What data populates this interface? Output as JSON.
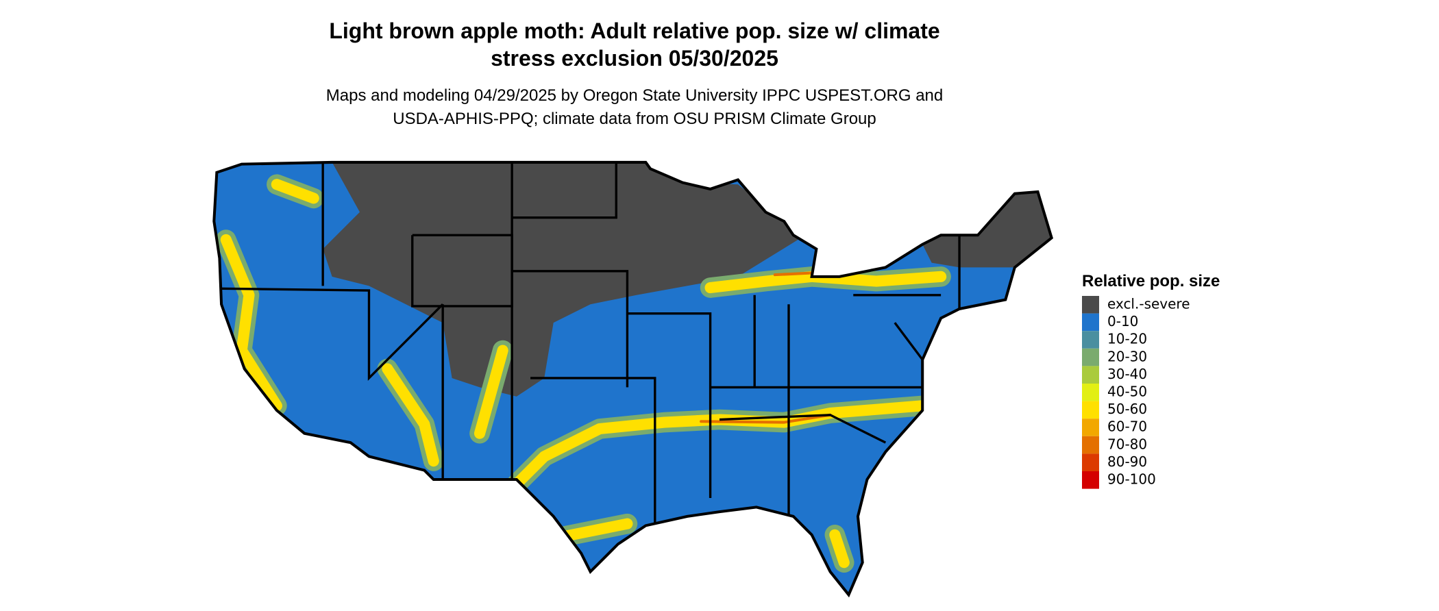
{
  "title": [
    "Light brown apple moth: Adult relative pop. size w/ climate",
    "stress exclusion 05/30/2025"
  ],
  "subtitle": [
    "Maps and modeling 04/29/2025 by Oregon State University IPPC USPEST.ORG and",
    "USDA-APHIS-PPQ; climate data from OSU PRISM Climate Group"
  ],
  "legend": {
    "title": "Relative pop. size",
    "items": [
      {
        "label": "excl.-severe",
        "color": "#4a4a4a"
      },
      {
        "label": "0-10",
        "color": "#1f74cc"
      },
      {
        "label": "10-20",
        "color": "#4a8fa0"
      },
      {
        "label": "20-30",
        "color": "#7aab6e"
      },
      {
        "label": "30-40",
        "color": "#aacb3c"
      },
      {
        "label": "40-50",
        "color": "#e2ef14"
      },
      {
        "label": "50-60",
        "color": "#ffe000"
      },
      {
        "label": "60-70",
        "color": "#f2a800"
      },
      {
        "label": "70-80",
        "color": "#e47000"
      },
      {
        "label": "80-90",
        "color": "#dc3a00"
      },
      {
        "label": "90-100",
        "color": "#d40000"
      }
    ]
  }
}
